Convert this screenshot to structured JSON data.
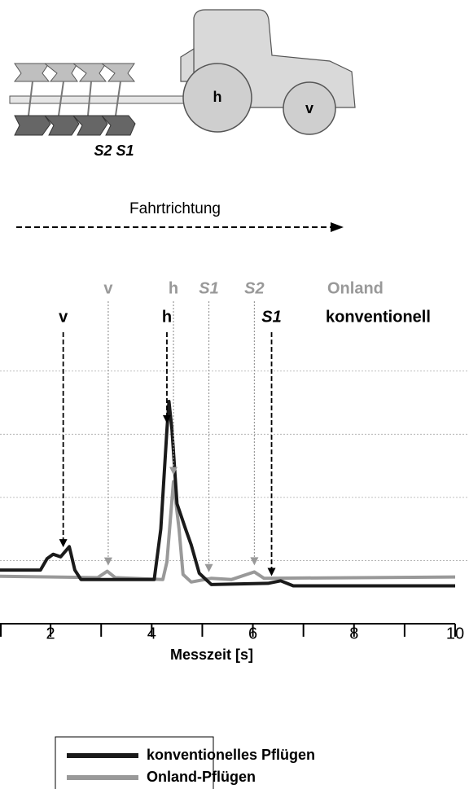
{
  "diagram": {
    "rear_wheel": "h",
    "front_wheel": "v",
    "shares": "S2 S1",
    "direction": "Fahrtrichtung"
  },
  "chart_data": {
    "type": "line",
    "x_label": "Messzeit [s]",
    "xlim": [
      1,
      10
    ],
    "xticks": [
      2,
      4,
      6,
      8,
      10
    ],
    "xminor": [
      1,
      3,
      5,
      7,
      9
    ],
    "ylim": [
      0,
      4.5
    ],
    "ygrid": [
      1,
      2,
      3,
      4
    ],
    "grid": true,
    "series": [
      {
        "name": "konventionelles Pflügen",
        "color": "#1a1a1a",
        "x": [
          1,
          1.8,
          1.93,
          2.05,
          2.2,
          2.37,
          2.48,
          2.6,
          4.05,
          4.18,
          4.3,
          4.34,
          4.4,
          4.5,
          4.67,
          4.78,
          4.94,
          5.18,
          6.3,
          6.55,
          6.8,
          10
        ],
        "values": [
          0.85,
          0.85,
          1.03,
          1.1,
          1.06,
          1.22,
          0.85,
          0.7,
          0.7,
          1.5,
          3.07,
          3.52,
          3.07,
          1.9,
          1.5,
          1.25,
          0.8,
          0.62,
          0.64,
          0.68,
          0.6,
          0.6
        ]
      },
      {
        "name": "Onland-Pflügen",
        "color": "#999999",
        "x": [
          1,
          2.93,
          3.12,
          3.28,
          4.22,
          4.3,
          4.43,
          4.54,
          4.62,
          4.78,
          5.18,
          5.58,
          6.03,
          6.22,
          10
        ],
        "values": [
          0.75,
          0.73,
          0.83,
          0.73,
          0.7,
          0.98,
          2.25,
          1.5,
          0.78,
          0.66,
          0.72,
          0.7,
          0.82,
          0.72,
          0.74
        ]
      }
    ],
    "markers": [
      {
        "label": "konventionell",
        "color": "#000000",
        "points": [
          {
            "text": "v",
            "x": 2.25
          },
          {
            "text": "h",
            "x": 4.3
          },
          {
            "text": "S1",
            "x": 6.37
          }
        ]
      },
      {
        "label": "Onland",
        "color": "#999999",
        "points": [
          {
            "text": "v",
            "x": 3.14
          },
          {
            "text": "h",
            "x": 4.43
          },
          {
            "text": "S1",
            "x": 5.13
          },
          {
            "text": "S2",
            "x": 6.03
          }
        ]
      }
    ]
  }
}
